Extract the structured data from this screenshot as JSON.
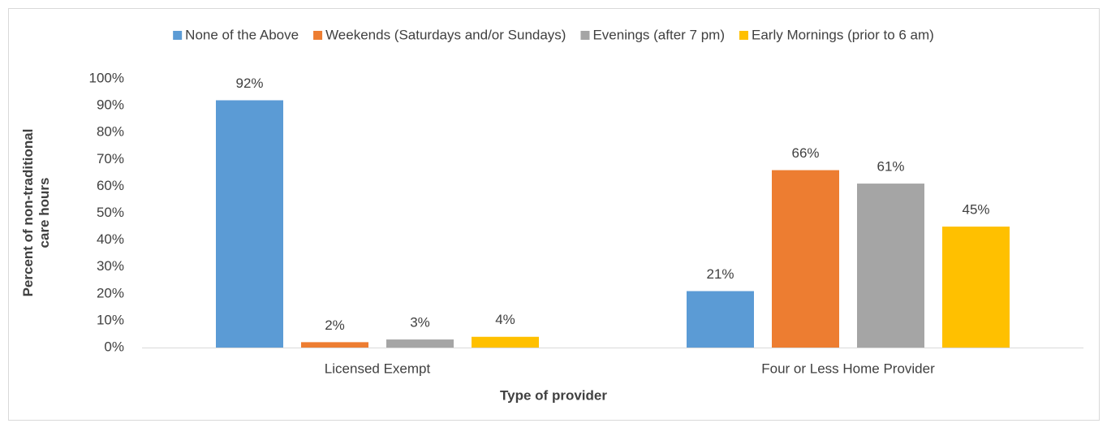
{
  "chart_data": {
    "type": "bar",
    "x_label": "Type of provider",
    "y_label": "Percent of non-traditional care hours",
    "categories": [
      "Licensed Exempt",
      "Four or Less Home Provider"
    ],
    "series": [
      {
        "name": "None of the Above",
        "color": "#5b9bd5",
        "values": [
          92,
          21
        ],
        "value_labels": [
          "92%",
          "21%"
        ]
      },
      {
        "name": "Weekends (Saturdays and/or Sundays)",
        "color": "#ed7d31",
        "values": [
          2,
          66
        ],
        "value_labels": [
          "2%",
          "66%"
        ]
      },
      {
        "name": "Evenings (after 7 pm)",
        "color": "#a5a5a5",
        "values": [
          3,
          61
        ],
        "value_labels": [
          "3%",
          "61%"
        ]
      },
      {
        "name": "Early Mornings (prior to 6 am)",
        "color": "#ffc000",
        "values": [
          4,
          45
        ],
        "value_labels": [
          "4%",
          "45%"
        ]
      }
    ],
    "ylim": [
      0,
      100
    ],
    "yticks": [
      {
        "value": 0,
        "label": "0%"
      },
      {
        "value": 10,
        "label": "10%"
      },
      {
        "value": 20,
        "label": "20%"
      },
      {
        "value": 30,
        "label": "30%"
      },
      {
        "value": 40,
        "label": "40%"
      },
      {
        "value": 50,
        "label": "50%"
      },
      {
        "value": 60,
        "label": "60%"
      },
      {
        "value": 70,
        "label": "70%"
      },
      {
        "value": 80,
        "label": "80%"
      },
      {
        "value": 90,
        "label": "90%"
      },
      {
        "value": 100,
        "label": "100%"
      }
    ],
    "grid": false,
    "legend": "top"
  }
}
